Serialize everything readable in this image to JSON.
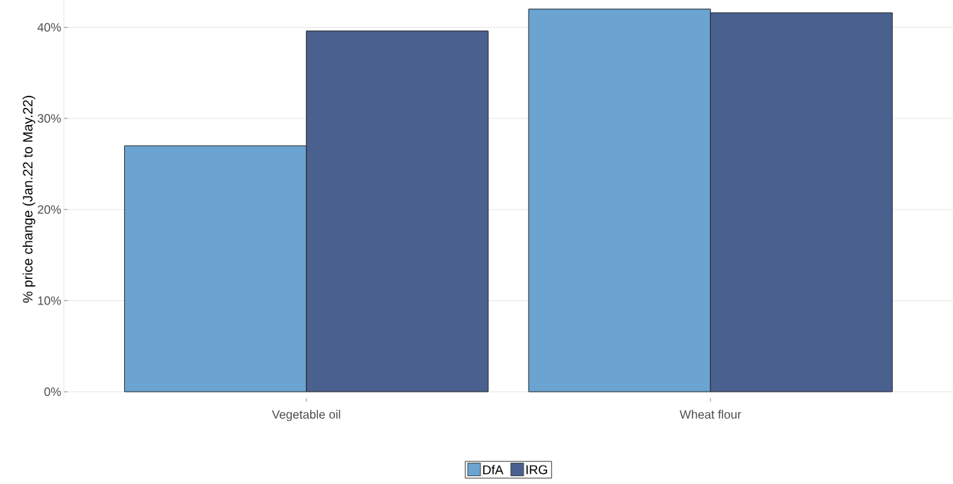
{
  "chart_data": {
    "type": "bar",
    "ylabel": "% price change (Jan.22 to May.22)",
    "categories": [
      "Vegetable oil",
      "Wheat flour"
    ],
    "series": [
      {
        "name": "DfA",
        "color": "#6ba4d1",
        "values": [
          27.0,
          42.0
        ]
      },
      {
        "name": "IRG",
        "color": "#4a6190",
        "values": [
          39.6,
          41.6
        ]
      }
    ],
    "ylim": [
      -0.7,
      43
    ],
    "yticks": [
      {
        "value": 0,
        "label": "0%"
      },
      {
        "value": 10,
        "label": "10%"
      },
      {
        "value": 20,
        "label": "20%"
      },
      {
        "value": 30,
        "label": "30%"
      },
      {
        "value": 40,
        "label": "40%"
      }
    ],
    "grid": "y",
    "legend": "bottom"
  }
}
